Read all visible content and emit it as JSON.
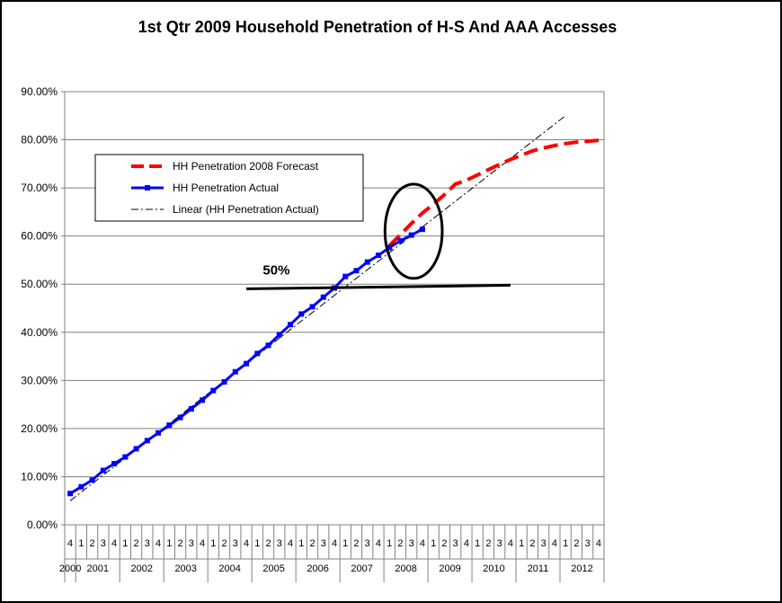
{
  "chart_data": {
    "type": "line",
    "title": "1st Qtr 2009 Household Penetration of H-S And AAA Accesses",
    "ylim": [
      0,
      90
    ],
    "y_ticks": [
      "0.00%",
      "10.00%",
      "20.00%",
      "30.00%",
      "40.00%",
      "50.00%",
      "60.00%",
      "70.00%",
      "80.00%",
      "90.00%"
    ],
    "grid": true,
    "legend_position": "upper-left",
    "quarters": [
      "4",
      "1",
      "2",
      "3",
      "4",
      "1",
      "2",
      "3",
      "4",
      "1",
      "2",
      "3",
      "4",
      "1",
      "2",
      "3",
      "4",
      "1",
      "2",
      "3",
      "4",
      "1",
      "2",
      "3",
      "4",
      "1",
      "2",
      "3",
      "4",
      "1",
      "2",
      "3",
      "4",
      "1",
      "2",
      "3",
      "4",
      "1",
      "2",
      "3",
      "4",
      "1",
      "2",
      "3",
      "4",
      "1",
      "2",
      "3",
      "4"
    ],
    "years": [
      {
        "label": "2000",
        "start": 0,
        "end": 0
      },
      {
        "label": "2001",
        "start": 1,
        "end": 4
      },
      {
        "label": "2002",
        "start": 5,
        "end": 8
      },
      {
        "label": "2003",
        "start": 9,
        "end": 12
      },
      {
        "label": "2004",
        "start": 13,
        "end": 16
      },
      {
        "label": "2005",
        "start": 17,
        "end": 20
      },
      {
        "label": "2006",
        "start": 21,
        "end": 24
      },
      {
        "label": "2007",
        "start": 25,
        "end": 28
      },
      {
        "label": "2008",
        "start": 29,
        "end": 32
      },
      {
        "label": "2009",
        "start": 33,
        "end": 36
      },
      {
        "label": "2010",
        "start": 37,
        "end": 40
      },
      {
        "label": "2011",
        "start": 41,
        "end": 44
      },
      {
        "label": "2012",
        "start": 45,
        "end": 48
      }
    ],
    "series": [
      {
        "name": "HH Penetration 2008 Forecast",
        "color": "#ff0000",
        "style": "dashed-thick",
        "x": [
          29,
          30,
          31,
          32,
          33,
          34,
          35,
          36,
          37,
          38,
          39,
          40,
          41,
          42,
          43,
          44,
          45,
          46,
          47,
          48
        ],
        "values": [
          58.0,
          60.3,
          62.6,
          64.8,
          66.6,
          68.6,
          70.8,
          71.6,
          72.7,
          73.8,
          74.9,
          75.9,
          76.8,
          77.7,
          78.3,
          78.8,
          79.2,
          79.5,
          79.7,
          79.9
        ]
      },
      {
        "name": "HH Penetration Actual",
        "color": "#0000ff",
        "style": "solid-markers",
        "x": [
          0,
          1,
          2,
          3,
          4,
          5,
          6,
          7,
          8,
          9,
          10,
          11,
          12,
          13,
          14,
          15,
          16,
          17,
          18,
          19,
          20,
          21,
          22,
          23,
          24,
          25,
          26,
          27,
          28,
          29,
          30,
          31,
          32
        ],
        "values": [
          6.5,
          7.9,
          9.3,
          11.3,
          12.7,
          14.1,
          15.8,
          17.5,
          19.1,
          20.7,
          22.3,
          24.1,
          25.9,
          27.9,
          29.7,
          31.8,
          33.5,
          35.6,
          37.3,
          39.5,
          41.6,
          43.8,
          45.3,
          47.3,
          49.2,
          51.6,
          52.8,
          54.6,
          56.0,
          57.6,
          59.0,
          60.2,
          61.4
        ]
      },
      {
        "name": "Linear (HH Penetration Actual)",
        "color": "#000000",
        "style": "dash-dot",
        "x": [
          0,
          45
        ],
        "values": [
          5.0,
          85.0
        ]
      }
    ],
    "annotations": [
      {
        "text": "50%",
        "kind": "reference-line",
        "x_from": 16,
        "x_to": 40,
        "y": 49.4
      },
      {
        "kind": "ellipse-highlight",
        "x_center": 31.2,
        "y_center": 61.0,
        "x_radius": 2.6,
        "y_radius": 9.8
      }
    ]
  }
}
